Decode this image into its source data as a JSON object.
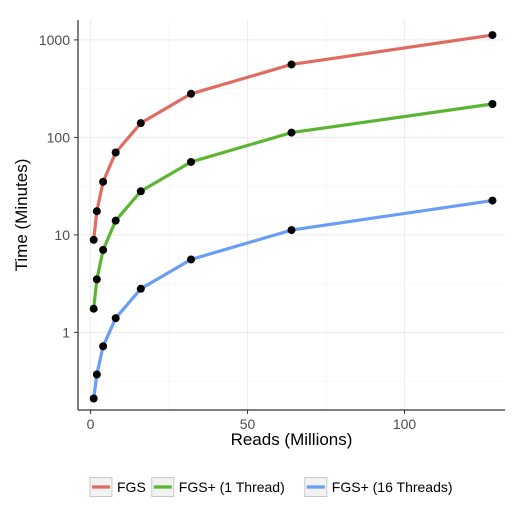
{
  "chart_data": {
    "type": "line",
    "title": "",
    "xlabel": "Reads (Millions)",
    "ylabel": "Time (Minutes)",
    "xlim": [
      -4,
      132
    ],
    "ylim": [
      0.16,
      1600
    ],
    "y_scale": "log10",
    "grid": true,
    "legend_position": "bottom",
    "x_ticks": [
      0,
      50,
      100
    ],
    "x_tick_labels": [
      "0",
      "50",
      "100"
    ],
    "y_ticks": [
      1,
      10,
      100,
      1000
    ],
    "y_tick_labels": [
      "1",
      "10",
      "100",
      "1000"
    ],
    "x": [
      1,
      2,
      4,
      8,
      16,
      32,
      64,
      128
    ],
    "series": [
      {
        "name": "FGS",
        "color": "#E06C61",
        "values": [
          8.9,
          17.5,
          35,
          70,
          140,
          280,
          560,
          1120
        ]
      },
      {
        "name": "FGS+ (1 Thread)",
        "color": "#5BB532",
        "values": [
          1.75,
          3.5,
          7,
          14,
          28,
          56,
          112,
          220
        ]
      },
      {
        "name": "FGS+ (16 Threads)",
        "color": "#6A9DF5",
        "values": [
          0.21,
          0.37,
          0.72,
          1.4,
          2.8,
          5.6,
          11.2,
          22.5
        ]
      }
    ],
    "marker_color": "#000000"
  }
}
